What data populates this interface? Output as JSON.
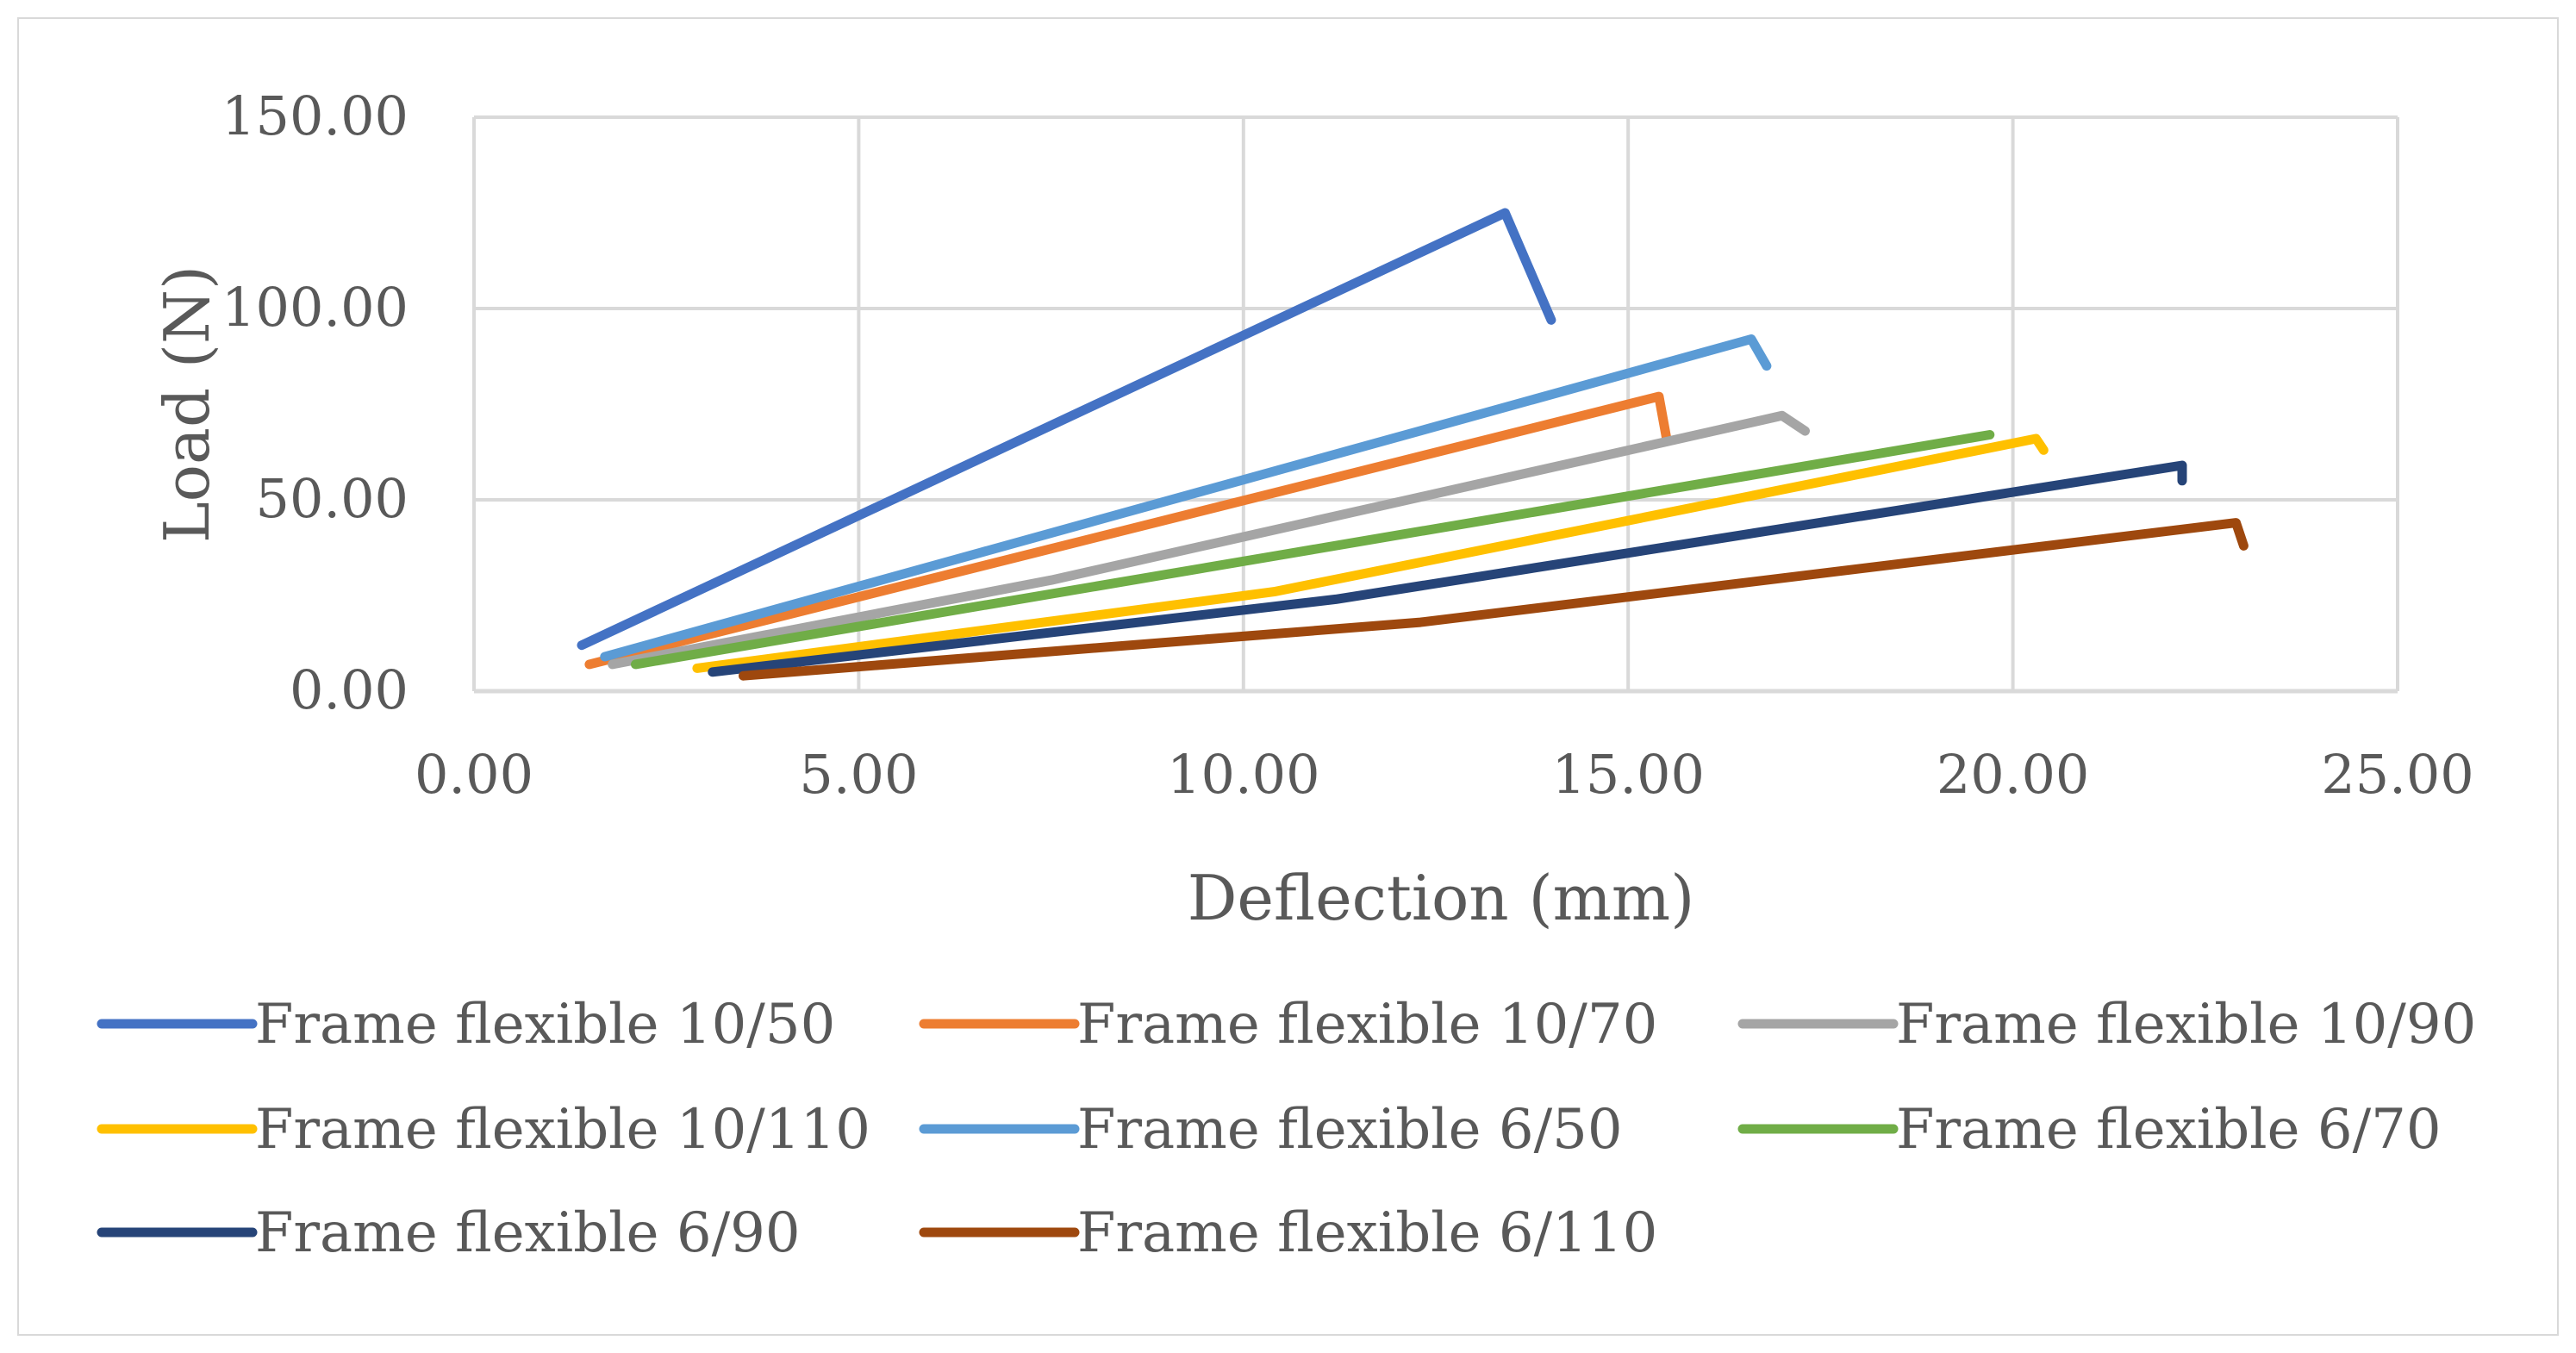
{
  "chart_data": {
    "type": "line",
    "title": "",
    "xlabel": "Deflection (mm)",
    "ylabel": "Load (N)",
    "xlim": [
      0,
      25
    ],
    "ylim": [
      0,
      150
    ],
    "x_ticks": [
      "0.00",
      "5.00",
      "10.00",
      "15.00",
      "20.00",
      "25.00"
    ],
    "y_ticks": [
      "0.00",
      "50.00",
      "100.00",
      "150.00"
    ],
    "x_tick_values": [
      0,
      5,
      10,
      15,
      20,
      25
    ],
    "y_tick_values": [
      0,
      50,
      100,
      150
    ],
    "grid": true,
    "legend_position": "bottom",
    "series": [
      {
        "name": "Frame flexible 10/50",
        "color": "#4472C4",
        "points": [
          [
            1.4,
            12
          ],
          [
            13.4,
            125
          ],
          [
            14.0,
            97
          ]
        ]
      },
      {
        "name": "Frame flexible 10/70",
        "color": "#ED7D31",
        "points": [
          [
            1.5,
            7
          ],
          [
            15.4,
            77
          ],
          [
            15.5,
            66
          ]
        ]
      },
      {
        "name": "Frame flexible 10/90",
        "color": "#A5A5A5",
        "points": [
          [
            1.8,
            7
          ],
          [
            7.5,
            29
          ],
          [
            17.0,
            72
          ],
          [
            17.3,
            68
          ]
        ]
      },
      {
        "name": "Frame flexible 10/110",
        "color": "#FFC000",
        "points": [
          [
            2.9,
            6
          ],
          [
            10.4,
            26
          ],
          [
            20.3,
            66
          ],
          [
            20.4,
            63
          ]
        ]
      },
      {
        "name": "Frame flexible 6/50",
        "color": "#5B9BD5",
        "points": [
          [
            1.7,
            9
          ],
          [
            16.6,
            92
          ],
          [
            16.8,
            85
          ]
        ]
      },
      {
        "name": "Frame flexible 6/70",
        "color": "#70AD47",
        "points": [
          [
            2.1,
            7
          ],
          [
            19.7,
            67
          ]
        ]
      },
      {
        "name": "Frame flexible 6/90",
        "color": "#264478",
        "points": [
          [
            3.1,
            5
          ],
          [
            11.2,
            24
          ],
          [
            22.2,
            59
          ],
          [
            22.2,
            55
          ]
        ]
      },
      {
        "name": "Frame flexible 6/110",
        "color": "#9E480E",
        "points": [
          [
            3.5,
            4
          ],
          [
            12.3,
            18
          ],
          [
            22.9,
            44
          ],
          [
            23.0,
            38
          ]
        ]
      }
    ]
  }
}
